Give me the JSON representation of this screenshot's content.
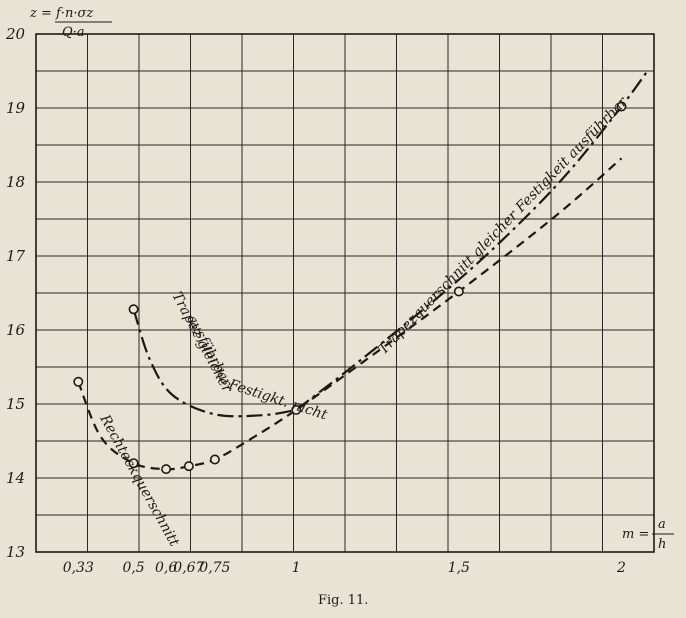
{
  "chart_data": {
    "type": "line",
    "y_axis_label": {
      "symbol": "z =",
      "numerator": "f·n·σz",
      "denominator": "Q·a"
    },
    "x_axis_label": {
      "symbol": "m =",
      "numerator": "a",
      "denominator": "h"
    },
    "xlim": [
      0.2,
      2.1
    ],
    "ylim": [
      13,
      20
    ],
    "x_ticks": [
      {
        "value": 0.33,
        "label": "0,33"
      },
      {
        "value": 0.5,
        "label": "0,5"
      },
      {
        "value": 0.6,
        "label": "0,6"
      },
      {
        "value": 0.67,
        "label": "0,67"
      },
      {
        "value": 0.75,
        "label": "0,75"
      },
      {
        "value": 1,
        "label": "1"
      },
      {
        "value": 1.5,
        "label": "1,5"
      },
      {
        "value": 2,
        "label": "2"
      }
    ],
    "y_ticks": [
      {
        "value": 13,
        "label": "13"
      },
      {
        "value": 14,
        "label": "14"
      },
      {
        "value": 15,
        "label": "15"
      },
      {
        "value": 16,
        "label": "16"
      },
      {
        "value": 17,
        "label": "17"
      },
      {
        "value": 18,
        "label": "18"
      },
      {
        "value": 19,
        "label": "19"
      },
      {
        "value": 20,
        "label": "20"
      }
    ],
    "grid": true,
    "series": [
      {
        "name": "Rechteckquerschnitt",
        "style": "dashed",
        "points": [
          [
            0.33,
            15.3
          ],
          [
            0.4,
            14.55
          ],
          [
            0.5,
            14.2
          ],
          [
            0.6,
            14.12
          ],
          [
            0.67,
            14.16
          ],
          [
            0.75,
            14.25
          ],
          [
            0.85,
            14.5
          ],
          [
            1.0,
            14.92
          ],
          [
            1.2,
            15.55
          ],
          [
            1.5,
            16.52
          ],
          [
            1.8,
            17.55
          ],
          [
            2.0,
            18.32
          ]
        ]
      },
      {
        "name": "Trapezquerschnitt gleicher Festigkeit ausführbar",
        "style": "dash-dot",
        "points": [
          [
            1.0,
            14.92
          ],
          [
            1.2,
            15.6
          ],
          [
            1.5,
            16.68
          ],
          [
            1.7,
            17.5
          ],
          [
            1.85,
            18.2
          ],
          [
            2.0,
            19.02
          ],
          [
            2.08,
            19.5
          ]
        ]
      },
      {
        "name": "Trapezquerschnitt gleicher Festigkt. nicht ausführbar",
        "style": "dash-dot",
        "points": [
          [
            0.5,
            16.28
          ],
          [
            0.55,
            15.6
          ],
          [
            0.62,
            15.12
          ],
          [
            0.75,
            14.86
          ],
          [
            0.9,
            14.85
          ],
          [
            1.0,
            14.92
          ]
        ]
      }
    ],
    "markers": [
      [
        0.33,
        15.3
      ],
      [
        0.5,
        16.28
      ],
      [
        0.5,
        14.2
      ],
      [
        0.6,
        14.12
      ],
      [
        0.67,
        14.16
      ],
      [
        0.75,
        14.25
      ],
      [
        1.0,
        14.92
      ],
      [
        1.5,
        16.52
      ],
      [
        2.0,
        19.02
      ]
    ],
    "annotations": [
      {
        "text": "Rechteckquerschnitt"
      },
      {
        "text": "Trapezquerschnitt gleicher Festigkeit ausführbar"
      },
      {
        "text": "Trapez gleicher"
      },
      {
        "text": "ausführbar"
      },
      {
        "text": "Festigkt. nicht"
      }
    ]
  },
  "caption": "Fig. 11."
}
